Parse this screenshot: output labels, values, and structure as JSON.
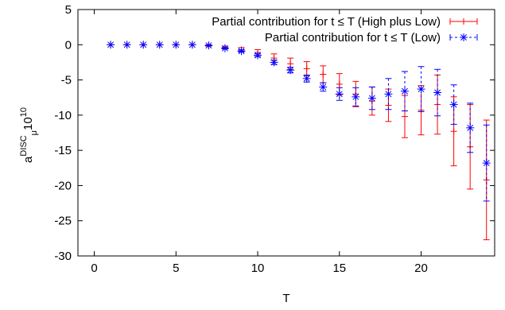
{
  "chart_data": {
    "type": "scatter",
    "title": "",
    "xlabel": "T",
    "ylabel": {
      "base": "a",
      "superscript": "DISC",
      "subscript": "μ",
      "suffix": "10",
      "suffix_superscript": "10"
    },
    "xlim": [
      -1,
      24.5
    ],
    "ylim": [
      -30,
      5
    ],
    "xticks": [
      0,
      5,
      10,
      15,
      20
    ],
    "yticks": [
      5,
      0,
      -5,
      -10,
      -15,
      -20,
      -25,
      -30
    ],
    "grid": false,
    "legend_position": "top-right",
    "series": [
      {
        "name": "Partial contribution for t ≤ T (High plus Low)",
        "color": "#ff0000",
        "marker": "plus",
        "line": "solid",
        "x": [
          1,
          2,
          3,
          4,
          5,
          6,
          7,
          8,
          9,
          10,
          11,
          12,
          13,
          14,
          15,
          16,
          17,
          18,
          19,
          20,
          21,
          22,
          23,
          24
        ],
        "y": [
          0,
          0,
          0,
          0,
          0,
          0,
          -0.1,
          -0.4,
          -0.7,
          -1.1,
          -1.9,
          -2.7,
          -3.4,
          -4.2,
          -5.6,
          -7.0,
          -8.0,
          -8.6,
          -10.2,
          -9.3,
          -8.5,
          -12.3,
          -14.5,
          -19.2
        ],
        "err": [
          0,
          0,
          0,
          0,
          0,
          0,
          0.1,
          0.2,
          0.3,
          0.4,
          0.6,
          0.8,
          1.0,
          1.2,
          1.5,
          1.8,
          2.0,
          2.3,
          3.0,
          3.5,
          4.2,
          4.9,
          6.0,
          8.5
        ]
      },
      {
        "name": "Partial contribution for t ≤ T (Low)",
        "color": "#0000ff",
        "marker": "star",
        "line": "dotted",
        "x": [
          1,
          2,
          3,
          4,
          5,
          6,
          7,
          8,
          9,
          10,
          11,
          12,
          13,
          14,
          15,
          16,
          17,
          18,
          19,
          20,
          21,
          22,
          23,
          24
        ],
        "y": [
          0,
          0,
          0,
          0,
          0,
          0,
          -0.1,
          -0.5,
          -0.9,
          -1.5,
          -2.5,
          -3.6,
          -4.8,
          -6.0,
          -7.0,
          -7.4,
          -7.6,
          -7.0,
          -6.6,
          -6.3,
          -6.8,
          -8.5,
          -11.8,
          -16.8
        ],
        "err": [
          0,
          0,
          0,
          0,
          0,
          0,
          0.05,
          0.1,
          0.15,
          0.2,
          0.3,
          0.4,
          0.5,
          0.6,
          0.9,
          1.3,
          1.6,
          2.2,
          2.8,
          3.2,
          3.3,
          2.8,
          3.5,
          5.4
        ]
      }
    ]
  }
}
